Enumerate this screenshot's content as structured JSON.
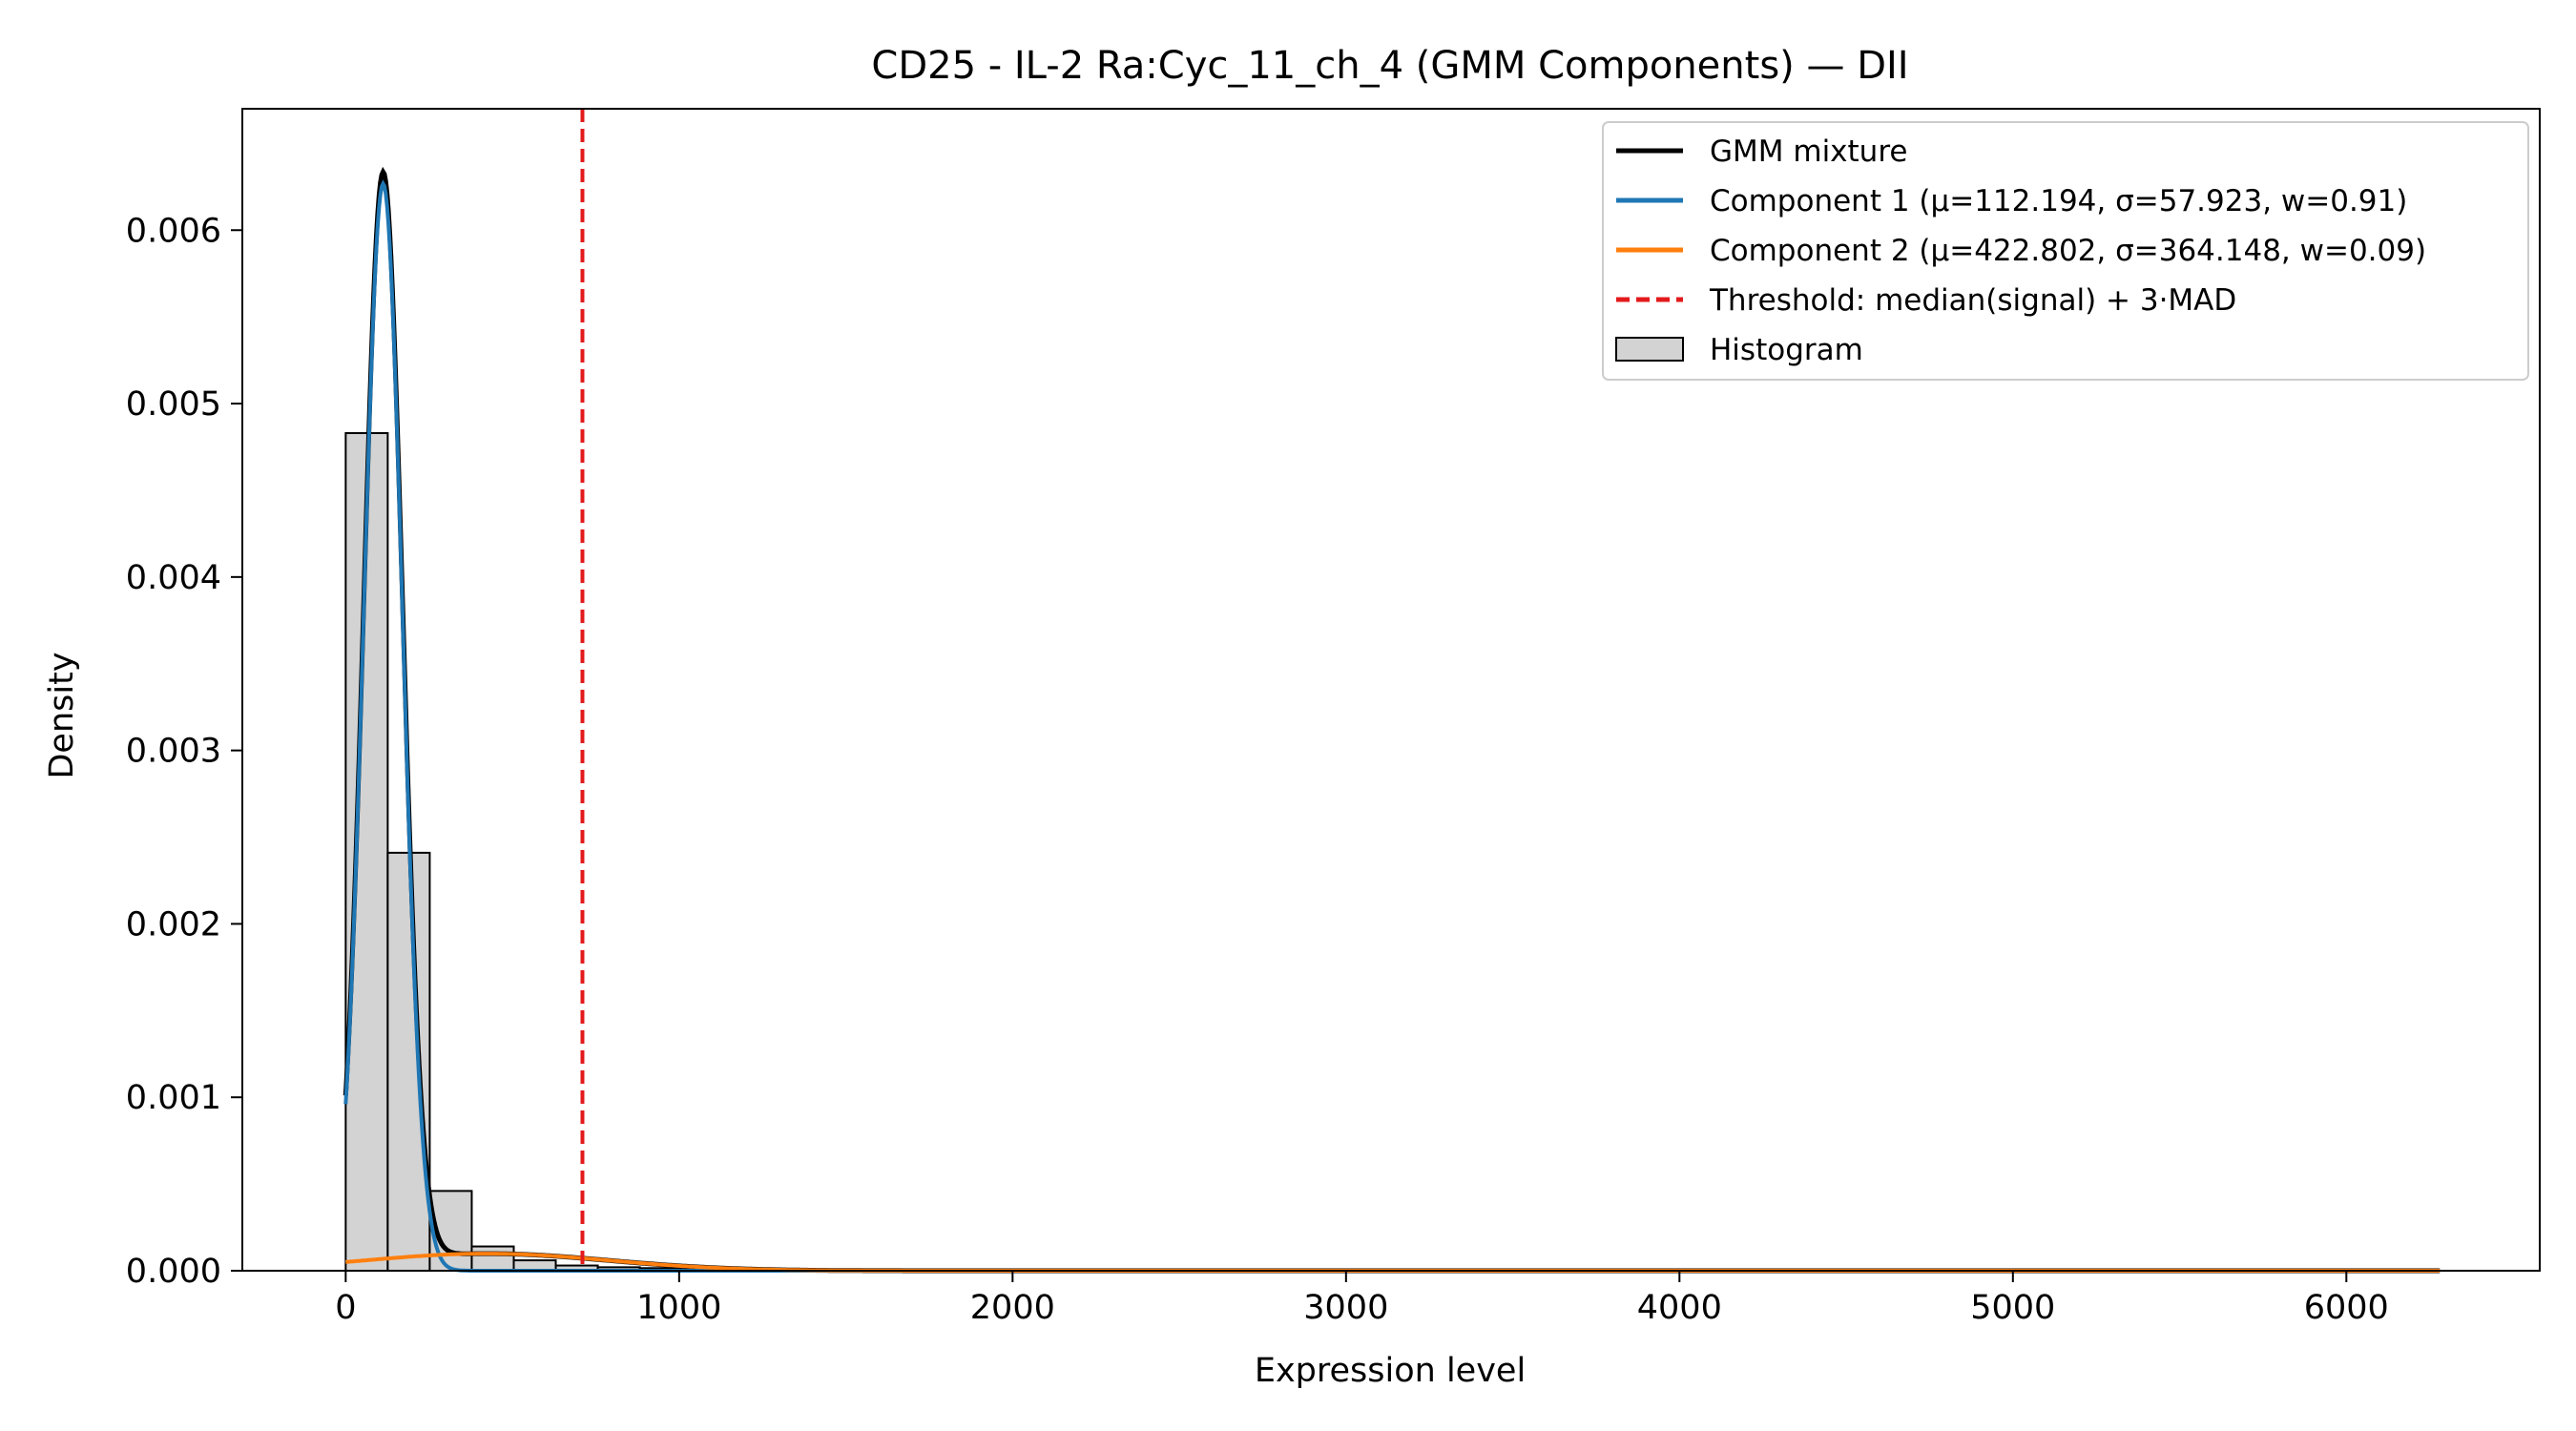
{
  "chart_data": {
    "type": "histogram",
    "title": "CD25 - IL-2 Ra:Cyc_11_ch_4 (GMM Components) — DII",
    "xlabel": "Expression level",
    "ylabel": "Density",
    "xlim": [
      -310,
      6580
    ],
    "ylim": [
      0,
      0.0067
    ],
    "xticks": [
      0,
      1000,
      2000,
      3000,
      4000,
      5000,
      6000
    ],
    "xtick_labels": [
      "0",
      "1000",
      "2000",
      "3000",
      "4000",
      "5000",
      "6000"
    ],
    "yticks": [
      0,
      0.001,
      0.002,
      0.003,
      0.004,
      0.005,
      0.006
    ],
    "ytick_labels": [
      "0.000",
      "0.001",
      "0.002",
      "0.003",
      "0.004",
      "0.005",
      "0.006"
    ],
    "grid": false,
    "legend_position": "top-right",
    "histogram": {
      "name": "Histogram",
      "face_color": "#d3d3d3",
      "edge_color": "#000000",
      "bin_width": 126,
      "bin_starts": [
        0,
        126,
        252,
        378,
        504,
        630,
        756,
        882,
        1008,
        1134,
        1260,
        1386,
        1512,
        1638
      ],
      "densities": [
        0.00483,
        0.00241,
        0.00046,
        0.00014,
        6e-05,
        3e-05,
        2e-05,
        1.5e-05,
        1e-05,
        8e-06,
        6e-06,
        4e-06,
        3e-06,
        2e-06
      ]
    },
    "components": [
      {
        "name": "Component 1 (μ=112.194, σ=57.923, w=0.91)",
        "mu": 112.194,
        "sigma": 57.923,
        "weight": 0.91,
        "color": "#1f77b4"
      },
      {
        "name": "Component 2 (μ=422.802, σ=364.148, w=0.09)",
        "mu": 422.802,
        "sigma": 364.148,
        "weight": 0.09,
        "color": "#ff7f0e"
      }
    ],
    "mixture": {
      "name": "GMM mixture",
      "color": "#000000"
    },
    "curve_x_range": [
      0,
      6280
    ],
    "threshold": {
      "name": "Threshold: median(signal) + 3·MAD",
      "x": 710,
      "color": "#e31a1c"
    }
  }
}
